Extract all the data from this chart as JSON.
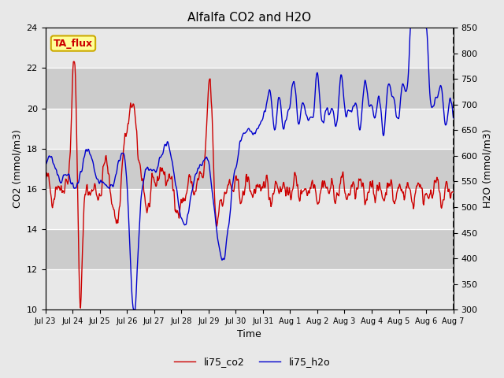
{
  "title": "Alfalfa CO2 and H2O",
  "xlabel": "Time",
  "ylabel_left": "CO2 (mmol/m3)",
  "ylabel_right": "H2O (mmol/m3)",
  "ylim_left": [
    10,
    24
  ],
  "ylim_right": [
    300,
    850
  ],
  "yticks_left": [
    10,
    12,
    14,
    16,
    18,
    20,
    22,
    24
  ],
  "yticks_right": [
    300,
    350,
    400,
    450,
    500,
    550,
    600,
    650,
    700,
    750,
    800,
    850
  ],
  "color_co2": "#cc0000",
  "color_h2o": "#0000cc",
  "bg_color": "#e8e8e8",
  "plot_bg_color": "#e0e0e0",
  "band_color_dark": "#cccccc",
  "band_color_light": "#e8e8e8",
  "annotation_text": "TA_flux",
  "annotation_color": "#cc0000",
  "annotation_bg": "#ffff99",
  "annotation_edge": "#ccaa00",
  "legend_co2": "li75_co2",
  "legend_h2o": "li75_h2o",
  "line_width": 1.0,
  "seed": 42,
  "tick_labels": [
    "Jul 23",
    "Jul 24",
    "Jul 25",
    "Jul 26",
    "Jul 27",
    "Jul 28",
    "Jul 29",
    "Jul 30",
    "Jul 31",
    "Aug 1",
    "Aug 2",
    "Aug 3",
    "Aug 4",
    "Aug 5",
    "Aug 6",
    "Aug 7"
  ],
  "tick_positions": [
    0,
    1,
    2,
    3,
    4,
    5,
    6,
    7,
    8,
    9,
    10,
    11,
    12,
    13,
    14,
    15
  ]
}
